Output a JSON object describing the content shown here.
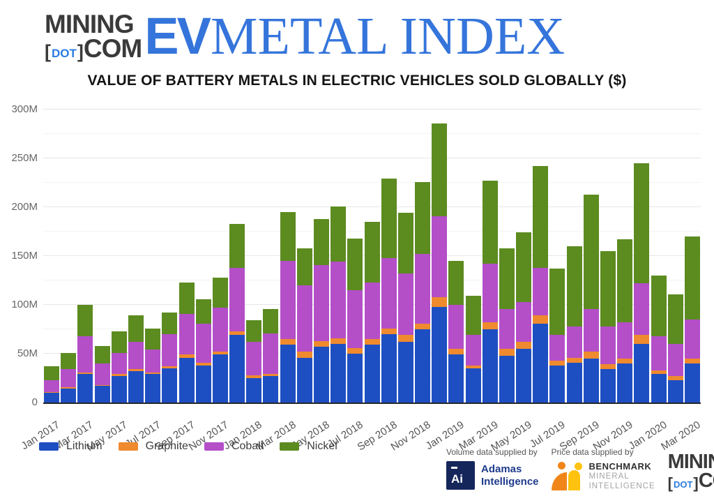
{
  "header": {
    "logo": {
      "mining": "MINING",
      "bracket_open": "[",
      "dot": "DOT",
      "bracket_close": "]",
      "com": "COM"
    },
    "index_title": {
      "ev": "EV",
      "metal_index": "METAL INDEX"
    }
  },
  "title": "VALUE OF BATTERY METALS IN ELECTRIC VEHICLES SOLD GLOBALLY ($)",
  "chart_data": {
    "type": "bar",
    "stacked": true,
    "title": "VALUE OF BATTERY METALS IN ELECTRIC VEHICLES SOLD GLOBALLY ($)",
    "unit": "millions USD",
    "ylim": [
      0,
      300
    ],
    "y_tick_labels": [
      "0",
      "50M",
      "100M",
      "150M",
      "200M",
      "250M",
      "300M"
    ],
    "y_tick_step": 50,
    "grid": true,
    "legend_position": "bottom",
    "categories": [
      "Jan 2017",
      "Feb 2017",
      "Mar 2017",
      "Apr 2017",
      "May 2017",
      "Jun 2017",
      "Jul 2017",
      "Aug 2017",
      "Sep 2017",
      "Oct 2017",
      "Nov 2017",
      "Dec 2017",
      "Jan 2018",
      "Feb 2018",
      "Mar 2018",
      "Apr 2018",
      "May 2018",
      "Jun 2018",
      "Jul 2018",
      "Aug 2018",
      "Sep 2018",
      "Oct 2018",
      "Nov 2018",
      "Dec 2018",
      "Jan 2019",
      "Feb 2019",
      "Mar 2019",
      "Apr 2019",
      "May 2019",
      "Jun 2019",
      "Jul 2019",
      "Aug 2019",
      "Sep 2019",
      "Oct 2019",
      "Nov 2019",
      "Dec 2019",
      "Jan 2020",
      "Feb 2020",
      "Mar 2020"
    ],
    "x_tick_labels": [
      "Jan 2017",
      "Mar 2017",
      "May 2017",
      "Jul 2017",
      "Sep 2017",
      "Nov 2017",
      "Jan 2018",
      "Mar 2018",
      "May 2018",
      "Jul 2018",
      "Sep 2018",
      "Nov 2018",
      "Jan 2019",
      "Mar 2019",
      "May 2019",
      "Jul 2019",
      "Sep 2019",
      "Nov 2019",
      "Jan 2020",
      "Mar 2020"
    ],
    "series": [
      {
        "name": "Lithium",
        "color": "#1e4fc2",
        "values": [
          10,
          14,
          29,
          17,
          27,
          32,
          29,
          35,
          46,
          38,
          49,
          69,
          25,
          27,
          59,
          46,
          57,
          60,
          50,
          59,
          70,
          62,
          75,
          98,
          49,
          35,
          75,
          48,
          55,
          81,
          38,
          41,
          45,
          34,
          40,
          60,
          29,
          23,
          40
        ]
      },
      {
        "name": "Graphite",
        "color": "#ef8a2e",
        "values": [
          1,
          2,
          2,
          1,
          2,
          2,
          2,
          2,
          3,
          3,
          3,
          4,
          3,
          2,
          6,
          6,
          6,
          6,
          6,
          6,
          6,
          7,
          6,
          10,
          6,
          3,
          7,
          7,
          7,
          8,
          5,
          5,
          7,
          5,
          5,
          9,
          4,
          4,
          5
        ]
      },
      {
        "name": "Cobalt",
        "color": "#b44fc8",
        "values": [
          12,
          18,
          37,
          22,
          22,
          28,
          23,
          33,
          42,
          40,
          45,
          65,
          34,
          42,
          80,
          68,
          78,
          78,
          59,
          58,
          72,
          63,
          71,
          83,
          45,
          31,
          60,
          41,
          41,
          49,
          26,
          32,
          44,
          39,
          37,
          53,
          35,
          33,
          40
        ]
      },
      {
        "name": "Nickel",
        "color": "#5c8b20",
        "values": [
          14,
          17,
          32,
          18,
          22,
          27,
          22,
          22,
          32,
          25,
          31,
          45,
          22,
          25,
          50,
          38,
          47,
          57,
          53,
          62,
          81,
          62,
          74,
          95,
          45,
          40,
          85,
          62,
          71,
          104,
          68,
          82,
          117,
          77,
          85,
          123,
          62,
          51,
          85
        ]
      }
    ]
  },
  "legend": {
    "items": [
      {
        "label": "Lithium",
        "color": "#1e4fc2"
      },
      {
        "label": "Graphite",
        "color": "#ef8a2e"
      },
      {
        "label": "Cobalt",
        "color": "#b44fc8"
      },
      {
        "label": "Nickel",
        "color": "#5c8b20"
      }
    ]
  },
  "footer": {
    "volume_caption": "Volume data supplied by",
    "price_caption": "Price data supplied by",
    "adamas": {
      "symbol": "Ai",
      "name_line1": "Adamas",
      "name_line2": "Intelligence"
    },
    "benchmark": {
      "line1": "BENCHMARK",
      "line2": "MINERAL",
      "line3": "INTELLIGENCE"
    },
    "mining_logo": {
      "mining": "MINING",
      "bracket_open": "[",
      "dot": "DOT",
      "bracket_close": "]",
      "com": "COM"
    }
  }
}
